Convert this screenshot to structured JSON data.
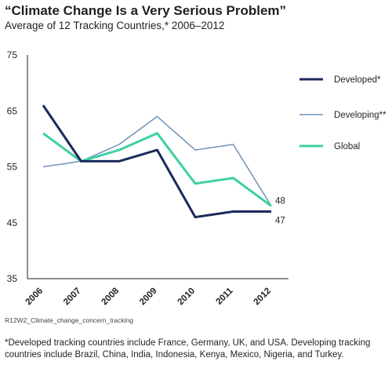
{
  "chart_data": {
    "type": "line",
    "title": "“Climate Change Is a Very Serious Problem”",
    "subtitle": "Average of 12 Tracking Countries,* 2006–2012",
    "categories": [
      "2006",
      "2007",
      "2008",
      "2009",
      "2010",
      "2011",
      "2012"
    ],
    "y_ticks": [
      35,
      45,
      55,
      65,
      75
    ],
    "ylim": [
      35,
      75
    ],
    "grid": false,
    "legend_position": "right",
    "series": [
      {
        "name": "Developed*",
        "values": [
          66,
          56,
          56,
          58,
          46,
          47,
          47
        ],
        "color": "#1b2a5c",
        "end_label": "47"
      },
      {
        "name": "Developing**",
        "values": [
          55,
          56,
          59,
          64,
          58,
          59,
          48
        ],
        "color": "#6f92b8"
      },
      {
        "name": "Global",
        "values": [
          61,
          56,
          58,
          61,
          52,
          53,
          48
        ],
        "color": "#3dd1a0",
        "end_label": "48"
      }
    ],
    "source_note": "R12W2_Climate_change_concern_tracking",
    "footnote": "*Developed tracking countries include France, Germany, UK, and USA. Developing tracking countries include Brazil, China, India, Indonesia, Kenya, Mexico, Nigeria, and Turkey."
  }
}
